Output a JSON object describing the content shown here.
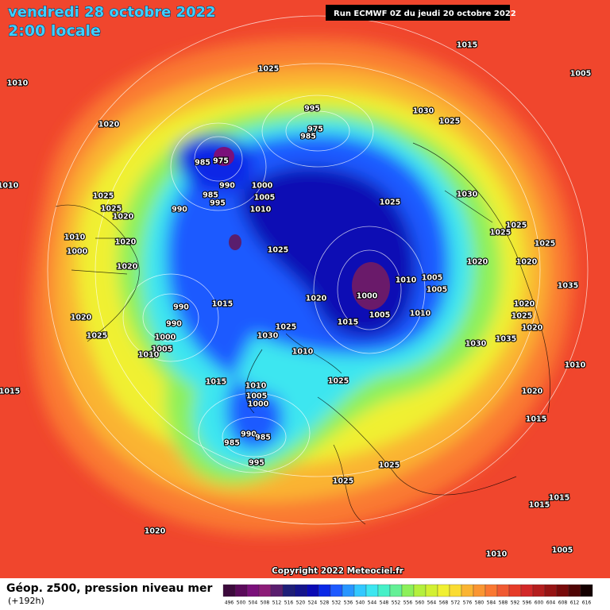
{
  "header": {
    "date": "vendredi 28 octobre 2022",
    "time": "2:00 locale",
    "run": "Run ECMWF 0Z du jeudi 20 octobre 2022"
  },
  "copyright": "Copyright 2022 Meteociel.fr",
  "footer": {
    "title": "Géop. z500, pression niveau mer",
    "lead": "(+192h)"
  },
  "isobar_labels": [
    1010,
    1020,
    1025,
    1015,
    1005,
    995,
    1030,
    1025,
    975,
    985,
    985,
    975,
    990,
    1000,
    985,
    1005,
    995,
    990,
    1010,
    1025,
    1030,
    1010,
    1025,
    1025,
    1020,
    1025,
    1025,
    1025,
    1010,
    1020,
    1025,
    1000,
    1020,
    1020,
    1020,
    1005,
    1010,
    1005,
    1035,
    1000,
    1020,
    990,
    1015,
    1020,
    1010,
    1005,
    1025,
    990,
    1015,
    1020,
    1025,
    1020,
    1025,
    1030,
    1035,
    1000,
    1030,
    1005,
    1010,
    1010,
    1010,
    1015,
    1015,
    1025,
    1010,
    1005,
    1000,
    1020,
    1015,
    990,
    985,
    985,
    995,
    1025,
    1025,
    1020,
    1015,
    1015,
    1010,
    1005
  ],
  "colorbar": {
    "ticks": [
      496,
      500,
      504,
      508,
      512,
      516,
      520,
      524,
      528,
      532,
      536,
      540,
      544,
      548,
      552,
      556,
      560,
      564,
      568,
      572,
      576,
      580,
      584,
      588,
      592,
      596,
      600,
      604,
      608,
      612,
      616
    ],
    "colors": [
      "#3c0a3c",
      "#5a0a5a",
      "#7a107a",
      "#8c1c78",
      "#5a1e6e",
      "#1e1e78",
      "#14148c",
      "#0a0ab4",
      "#0a28e6",
      "#1e5aff",
      "#2896ff",
      "#32c8ff",
      "#3ce6f0",
      "#46f0c8",
      "#64f096",
      "#8cf05a",
      "#b4f03c",
      "#d2f032",
      "#f0f032",
      "#fadc32",
      "#fab432",
      "#fa9632",
      "#fa7832",
      "#f05a32",
      "#e63c28",
      "#d22828",
      "#b41e1e",
      "#961414",
      "#780a0a",
      "#500505",
      "#140000"
    ]
  }
}
